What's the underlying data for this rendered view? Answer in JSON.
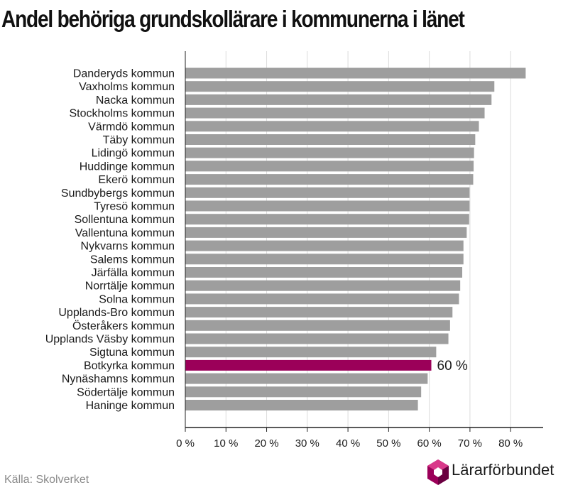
{
  "chart_data": {
    "type": "bar",
    "orientation": "horizontal",
    "title": "Andel behöriga grundskollärare i kommunerna i länet",
    "xlabel": "",
    "ylabel": "",
    "xlim": [
      0,
      88
    ],
    "xticks": [
      0,
      10,
      20,
      30,
      40,
      50,
      60,
      70,
      80
    ],
    "xtick_labels": [
      "0 %",
      "10 %",
      "20 %",
      "30 %",
      "40 %",
      "50 %",
      "60 %",
      "70 %",
      "80 %"
    ],
    "grid": true,
    "legend": "none",
    "categories": [
      "Danderyds kommun",
      "Vaxholms kommun",
      "Nacka kommun",
      "Stockholms kommun",
      "Värmdö kommun",
      "Täby kommun",
      "Lidingö kommun",
      "Huddinge kommun",
      "Ekerö kommun",
      "Sundbybergs kommun",
      "Tyresö kommun",
      "Sollentuna kommun",
      "Vallentuna kommun",
      "Nykvarns kommun",
      "Salems kommun",
      "Järfälla kommun",
      "Norrtälje kommun",
      "Solna kommun",
      "Upplands-Bro kommun",
      "Österåkers kommun",
      "Upplands Väsby kommun",
      "Sigtuna kommun",
      "Botkyrka kommun",
      "Nynäshamns kommun",
      "Södertälje kommun",
      "Haninge kommun"
    ],
    "values": [
      83.7,
      76.0,
      75.3,
      73.6,
      72.2,
      71.3,
      71.0,
      70.9,
      70.8,
      69.9,
      69.9,
      69.8,
      69.2,
      68.4,
      68.4,
      68.1,
      67.6,
      67.3,
      65.7,
      65.1,
      64.7,
      61.7,
      60.5,
      59.6,
      58.0,
      57.2
    ],
    "highlight_index": 22,
    "highlight_label": "60 %",
    "colors": {
      "bar": "#9e9e9e",
      "highlight": "#9b0059",
      "grid": "#dcdcdc",
      "axis": "#222222"
    }
  },
  "footer": {
    "source": "Källa: Skolverket",
    "logo_text": "Lärarförbundet"
  }
}
